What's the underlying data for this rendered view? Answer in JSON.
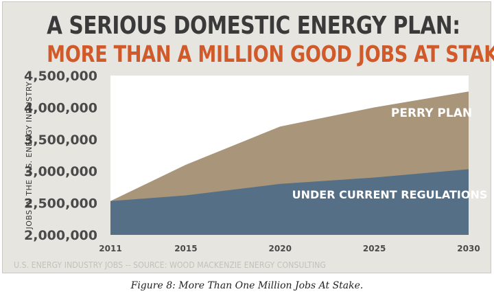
{
  "title": "A SERIOUS DOMESTIC ENERGY PLAN:",
  "subtitle": "MORE THAN A MILLION GOOD JOBS AT STAKE",
  "source_note": "U.S. ENERGY INDUSTRY JOBS -- SOURCE: WOOD MACKENZIE ENERGY CONSULTING",
  "caption": "Figure 8: More Than One Million Jobs At Stake.",
  "colors": {
    "perry_plan": "#a8957a",
    "current_regulations": "#546f86",
    "subtitle": "#d05a2a"
  },
  "chart_data": {
    "type": "area",
    "ylabel": "JOBS IN THE U.S. ENERGY INDUSTRY",
    "xlabel": "",
    "ylim": [
      2000000,
      4500000
    ],
    "xlim": [
      2011,
      2030
    ],
    "yticks": [
      "4,500,000",
      "4,000,000",
      "3,500,000",
      "3,000,000",
      "2,500,000",
      "2,000,000"
    ],
    "ytick_values": [
      4500000,
      4000000,
      3500000,
      3000000,
      2500000,
      2000000
    ],
    "xticks": [
      "2011",
      "2015",
      "2020",
      "2025",
      "2030"
    ],
    "xtick_values": [
      2011,
      2015,
      2020,
      2025,
      2030
    ],
    "series": [
      {
        "name": "PERRY PLAN",
        "x": [
          2011,
          2015,
          2020,
          2025,
          2030
        ],
        "values": [
          2530000,
          3100000,
          3700000,
          4000000,
          4250000
        ]
      },
      {
        "name": "UNDER CURRENT REGULATIONS",
        "x": [
          2011,
          2015,
          2020,
          2025,
          2030
        ],
        "values": [
          2530000,
          2620000,
          2800000,
          2900000,
          3030000
        ]
      }
    ]
  }
}
